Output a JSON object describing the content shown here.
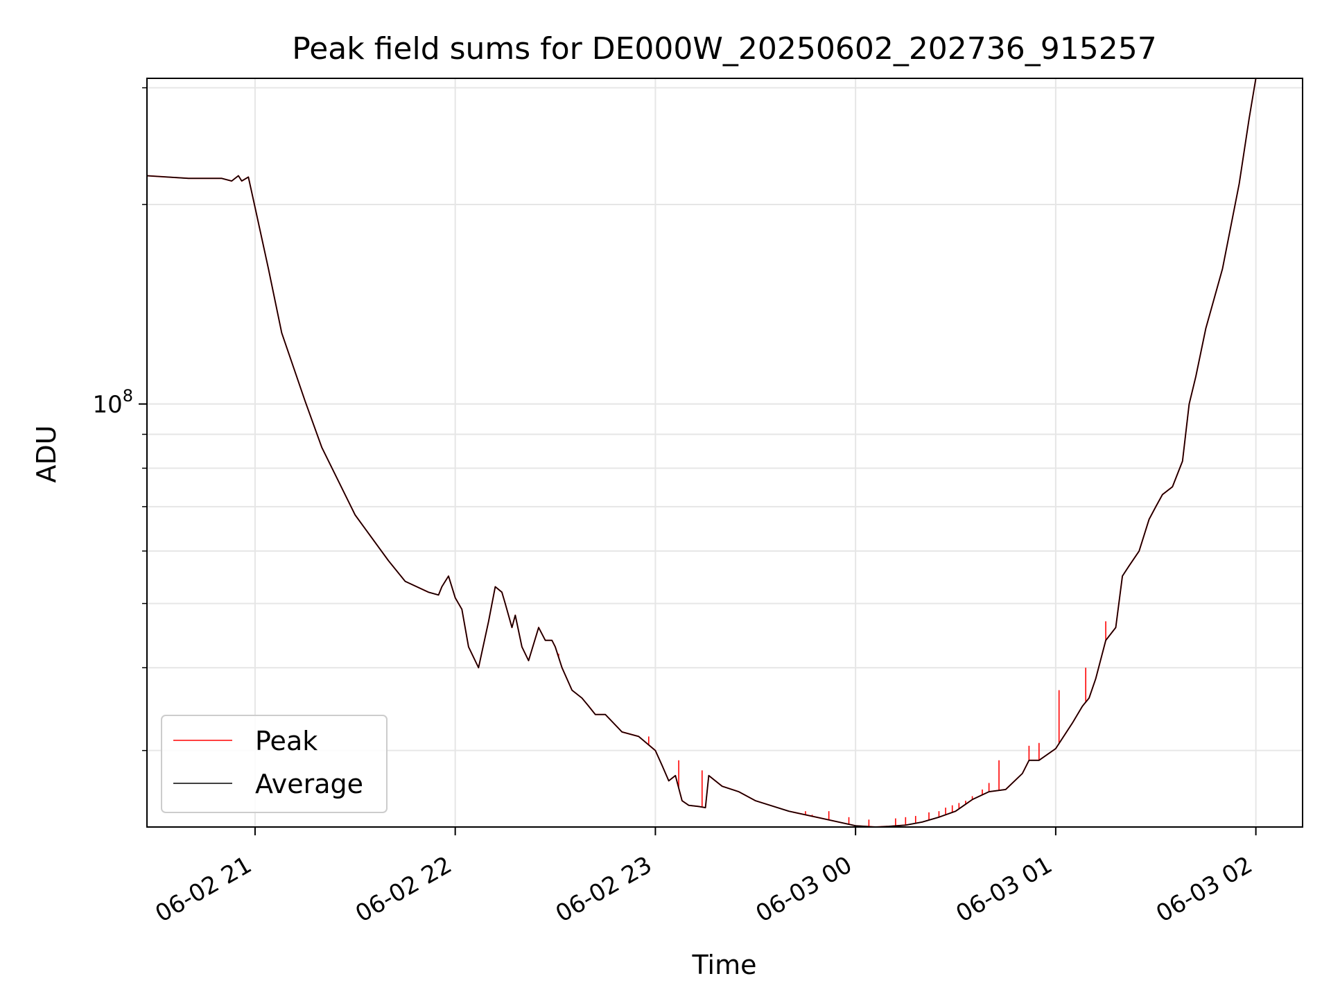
{
  "chart_data": {
    "type": "line",
    "title": "Peak field sums for DE000W_20250602_202736_915257",
    "xlabel": "Time",
    "ylabel": "ADU",
    "yscale": "log",
    "grid": true,
    "legend_position": "lower-left",
    "xlim": [
      "2025-06-02 20:27:36",
      "2025-06-03 02:14:00"
    ],
    "ylim": [
      23000000,
      310000000
    ],
    "x_ticks": [
      "2025-06-02 21:00",
      "2025-06-02 22:00",
      "2025-06-02 23:00",
      "2025-06-03 00:00",
      "2025-06-03 01:00",
      "2025-06-03 02:00"
    ],
    "x_tick_labels": [
      "06-02 21",
      "06-02 22",
      "06-02 23",
      "06-03 00",
      "06-03 01",
      "06-03 02"
    ],
    "y_major_ticks": [
      100000000
    ],
    "y_major_tick_labels": [
      "10",
      "8"
    ],
    "y_minor_ticks": [
      30000000,
      40000000,
      50000000,
      60000000,
      70000000,
      80000000,
      90000000,
      200000000,
      300000000
    ],
    "series": [
      {
        "name": "Average",
        "color": "#000000",
        "x": [
          "2025-06-02 20:27:36",
          "2025-06-02 20:40",
          "2025-06-02 20:50",
          "2025-06-02 20:53",
          "2025-06-02 20:55",
          "2025-06-02 20:56",
          "2025-06-02 20:58",
          "2025-06-02 21:00",
          "2025-06-02 21:04",
          "2025-06-02 21:08",
          "2025-06-02 21:15",
          "2025-06-02 21:20",
          "2025-06-02 21:30",
          "2025-06-02 21:40",
          "2025-06-02 21:45",
          "2025-06-02 21:52",
          "2025-06-02 21:55",
          "2025-06-02 21:56",
          "2025-06-02 21:58",
          "2025-06-02 22:00",
          "2025-06-02 22:02",
          "2025-06-02 22:04",
          "2025-06-02 22:07",
          "2025-06-02 22:10",
          "2025-06-02 22:12",
          "2025-06-02 22:14",
          "2025-06-02 22:15",
          "2025-06-02 22:17",
          "2025-06-02 22:18",
          "2025-06-02 22:20",
          "2025-06-02 22:22",
          "2025-06-02 22:25",
          "2025-06-02 22:27",
          "2025-06-02 22:29",
          "2025-06-02 22:30",
          "2025-06-02 22:32",
          "2025-06-02 22:35",
          "2025-06-02 22:38",
          "2025-06-02 22:40",
          "2025-06-02 22:42",
          "2025-06-02 22:45",
          "2025-06-02 22:50",
          "2025-06-02 22:55",
          "2025-06-02 23:00",
          "2025-06-02 23:02",
          "2025-06-02 23:04",
          "2025-06-02 23:06",
          "2025-06-02 23:08",
          "2025-06-02 23:10",
          "2025-06-02 23:13",
          "2025-06-02 23:15",
          "2025-06-02 23:16",
          "2025-06-02 23:20",
          "2025-06-02 23:25",
          "2025-06-02 23:30",
          "2025-06-02 23:40",
          "2025-06-02 23:50",
          "2025-06-03 00:00",
          "2025-06-03 00:06",
          "2025-06-03 00:10",
          "2025-06-03 00:15",
          "2025-06-03 00:20",
          "2025-06-03 00:25",
          "2025-06-03 00:30",
          "2025-06-03 00:35",
          "2025-06-03 00:40",
          "2025-06-03 00:45",
          "2025-06-03 00:50",
          "2025-06-03 00:52",
          "2025-06-03 00:55",
          "2025-06-03 01:00",
          "2025-06-03 01:05",
          "2025-06-03 01:08",
          "2025-06-03 01:10",
          "2025-06-03 01:12",
          "2025-06-03 01:15",
          "2025-06-03 01:18",
          "2025-06-03 01:20",
          "2025-06-03 01:22",
          "2025-06-03 01:25",
          "2025-06-03 01:28",
          "2025-06-03 01:30",
          "2025-06-03 01:32",
          "2025-06-03 01:35",
          "2025-06-03 01:38",
          "2025-06-03 01:40",
          "2025-06-03 01:42",
          "2025-06-03 01:45",
          "2025-06-03 01:50",
          "2025-06-03 01:55",
          "2025-06-03 01:58",
          "2025-06-03 02:00"
        ],
        "y": [
          221000000,
          219000000,
          219000000,
          217000000,
          221000000,
          217000000,
          220000000,
          198000000,
          160000000,
          128000000,
          101000000,
          86000000,
          68000000,
          58000000,
          54000000,
          52000000,
          51500000,
          53000000,
          55000000,
          51000000,
          49000000,
          43000000,
          40000000,
          47000000,
          53000000,
          52000000,
          50000000,
          46000000,
          48000000,
          43000000,
          41000000,
          46000000,
          44000000,
          44000000,
          43000000,
          40000000,
          37000000,
          36000000,
          35000000,
          34000000,
          34000000,
          32000000,
          31500000,
          30000000,
          28500000,
          27000000,
          27500000,
          25200000,
          24800000,
          24700000,
          24600000,
          27500000,
          26500000,
          26000000,
          25200000,
          24300000,
          23700000,
          23100000,
          23000000,
          23050000,
          23150000,
          23400000,
          23800000,
          24300000,
          25300000,
          26000000,
          26200000,
          27700000,
          29000000,
          29000000,
          30200000,
          33000000,
          35000000,
          36000000,
          38500000,
          44000000,
          46000000,
          55000000,
          57000000,
          60000000,
          67000000,
          70000000,
          73000000,
          75000000,
          82000000,
          100000000,
          110000000,
          130000000,
          160000000,
          215000000,
          270000000,
          310000000
        ]
      },
      {
        "name": "Peak",
        "color": "#ff0000",
        "spikes": [
          {
            "x": "2025-06-02 22:31",
            "y": 42000000
          },
          {
            "x": "2025-06-02 22:58",
            "y": 31500000
          },
          {
            "x": "2025-06-02 23:07",
            "y": 29000000
          },
          {
            "x": "2025-06-02 23:14",
            "y": 28000000
          },
          {
            "x": "2025-06-02 23:45",
            "y": 24300000
          },
          {
            "x": "2025-06-02 23:47",
            "y": 24000000
          },
          {
            "x": "2025-06-02 23:52",
            "y": 24300000
          },
          {
            "x": "2025-06-02 23:58",
            "y": 23800000
          },
          {
            "x": "2025-06-03 00:04",
            "y": 23600000
          },
          {
            "x": "2025-06-03 00:12",
            "y": 23700000
          },
          {
            "x": "2025-06-03 00:15",
            "y": 23800000
          },
          {
            "x": "2025-06-03 00:18",
            "y": 23900000
          },
          {
            "x": "2025-06-03 00:22",
            "y": 24200000
          },
          {
            "x": "2025-06-03 00:25",
            "y": 24300000
          },
          {
            "x": "2025-06-03 00:27",
            "y": 24600000
          },
          {
            "x": "2025-06-03 00:29",
            "y": 24800000
          },
          {
            "x": "2025-06-03 00:31",
            "y": 25000000
          },
          {
            "x": "2025-06-03 00:33",
            "y": 25200000
          },
          {
            "x": "2025-06-03 00:35",
            "y": 25600000
          },
          {
            "x": "2025-06-03 00:38",
            "y": 26200000
          },
          {
            "x": "2025-06-03 00:40",
            "y": 26800000
          },
          {
            "x": "2025-06-03 00:43",
            "y": 29000000
          },
          {
            "x": "2025-06-03 00:52",
            "y": 30500000
          },
          {
            "x": "2025-06-03 00:55",
            "y": 30800000
          },
          {
            "x": "2025-06-03 01:01",
            "y": 37000000
          },
          {
            "x": "2025-06-03 01:09",
            "y": 40000000
          },
          {
            "x": "2025-06-03 01:15",
            "y": 47000000
          }
        ]
      }
    ]
  }
}
